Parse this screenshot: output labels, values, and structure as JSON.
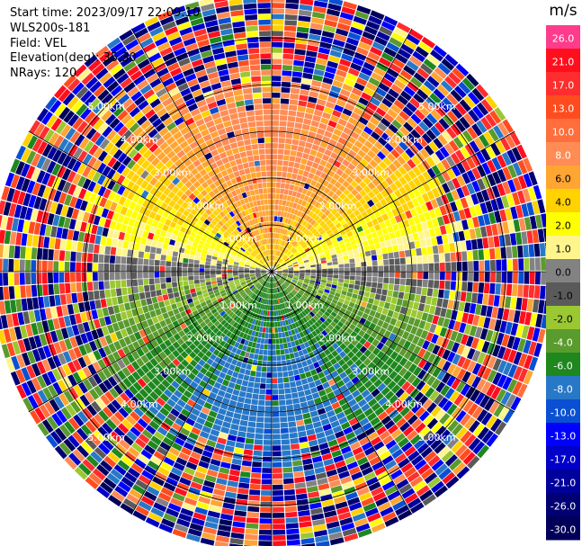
{
  "info": {
    "start_time": "Start time: 2023/09/17 22:09:10",
    "instrument": "WLS200s-181",
    "field": "Field: VEL",
    "elevation": "Elevation(deg): 35.30",
    "nrays": "NRays: 120"
  },
  "chart_data": {
    "type": "heatmap",
    "projection": "polar-ppi",
    "field": "VEL",
    "units": "m/s",
    "n_rays": 120,
    "range_ring_labels": [
      "1.00km",
      "2.00km",
      "3.00km",
      "4.00km",
      "5.00km"
    ],
    "range_rings_km": [
      1,
      2,
      3,
      4,
      5
    ],
    "approx_max_range_km": 6.0,
    "colorbar": {
      "label": "m/s",
      "tick_labels": [
        "26.0",
        "21.0",
        "17.0",
        "13.0",
        "10.0",
        "8.0",
        "6.0",
        "4.0",
        "2.0",
        "1.0",
        "0.0",
        "-1.0",
        "-2.0",
        "-4.0",
        "-6.0",
        "-8.0",
        "-10.0",
        "-13.0",
        "-17.0",
        "-21.0",
        "-26.0",
        "-30.0"
      ],
      "colors": [
        "#ff3c8c",
        "#ff0f1e",
        "#ff2d2d",
        "#ff4c1e",
        "#ff6e3c",
        "#ff8c55",
        "#ffa532",
        "#ffd200",
        "#ffff00",
        "#fff58c",
        "#828282",
        "#5a5a5a",
        "#9bc832",
        "#5a9b2d",
        "#1e871e",
        "#2878c8",
        "#0a50d2",
        "#0000ff",
        "#0000c8",
        "#00009b",
        "#000073",
        "#00005a"
      ]
    },
    "velocity_pattern": {
      "receding_sector": "north (upper half)",
      "receding_peak_ms": 10.0,
      "approaching_sector": "south (lower half)",
      "approaching_peak_ms": -8.0,
      "zero_line": "east-west",
      "noise_beyond_km": 3.5
    }
  }
}
